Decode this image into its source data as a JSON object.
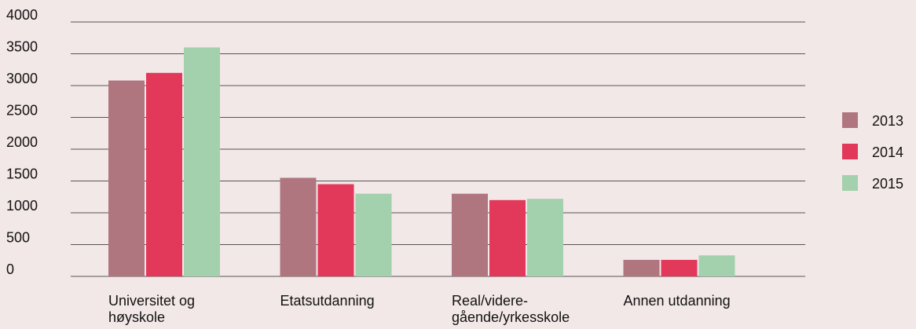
{
  "chart_data": {
    "type": "bar",
    "categories": [
      "Universitet og høyskole",
      "Etatsutdanning",
      "Real/videre-gående/yrkesskole",
      "Annen utdanning"
    ],
    "series": [
      {
        "name": "2013",
        "color": "#b07680",
        "values": [
          3080,
          1550,
          1300,
          260
        ]
      },
      {
        "name": "2014",
        "color": "#e2395a",
        "values": [
          3200,
          1450,
          1200,
          260
        ]
      },
      {
        "name": "2015",
        "color": "#a3d0ad",
        "values": [
          3600,
          1300,
          1220,
          330
        ]
      }
    ],
    "ylim": [
      0,
      4000
    ],
    "yticks": [
      0,
      500,
      1000,
      1500,
      2000,
      2500,
      3000,
      3500,
      4000
    ],
    "grid": true,
    "legend": "right"
  }
}
